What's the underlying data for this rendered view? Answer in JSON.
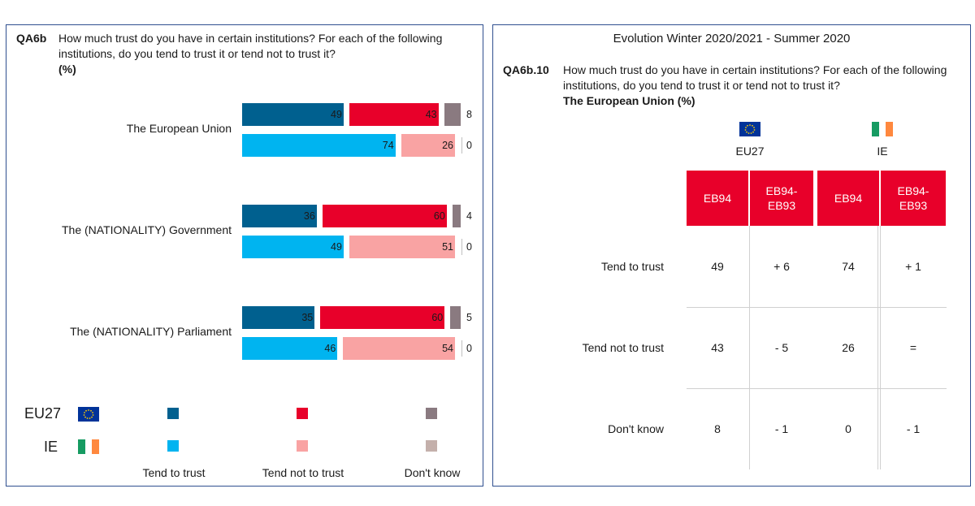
{
  "left": {
    "qcode": "QA6b",
    "question": "How much trust do you have in certain institutions? For each of the following institutions, do you tend to trust it or tend not to trust it?",
    "unit": "(%)",
    "legend": {
      "eu_code": "EU27",
      "ie_code": "IE",
      "trust": "Tend to trust",
      "not_trust": "Tend not to trust",
      "dont_know": "Don't know"
    }
  },
  "right": {
    "title": "Evolution Winter 2020/2021 - Summer 2020",
    "qcode": "QA6b.10",
    "question": "How much trust do you have in certain institutions? For each of the following institutions, do you tend to trust it or tend not to trust it?",
    "subject": "The European Union",
    "unit": "(%)",
    "groups": [
      "EU27",
      "IE"
    ],
    "col_heads": [
      "EB94",
      "EB94-\nEB93",
      "EB94",
      "EB94-\nEB93"
    ],
    "rows": [
      {
        "label": "Tend to trust",
        "cells": [
          "49",
          "+ 6",
          "74",
          "+ 1"
        ]
      },
      {
        "label": "Tend not to trust",
        "cells": [
          "43",
          "- 5",
          "26",
          "="
        ]
      },
      {
        "label": "Don't know",
        "cells": [
          "8",
          "- 1",
          "0",
          "- 1"
        ]
      }
    ]
  },
  "colors": {
    "eu_trust": "#00608f",
    "eu_not": "#e8002a",
    "eu_dk": "#8a7a80",
    "ie_trust": "#00b4f0",
    "ie_not": "#f9a3a3",
    "ie_dk": "#c4b0ab",
    "header_red": "#e8002a"
  },
  "chart_data": {
    "type": "bar",
    "orientation": "horizontal",
    "stacked": true,
    "categories": [
      "The European Union",
      "The (NATIONALITY) Government",
      "The (NATIONALITY) Parliament"
    ],
    "series_groups": [
      {
        "name": "EU27",
        "trust": [
          49,
          36,
          35
        ],
        "not_trust": [
          43,
          60,
          60
        ],
        "dont_know": [
          8,
          4,
          5
        ]
      },
      {
        "name": "IE",
        "trust": [
          74,
          49,
          46
        ],
        "not_trust": [
          26,
          51,
          54
        ],
        "dont_know": [
          0,
          0,
          0
        ]
      }
    ],
    "xlim": [
      0,
      100
    ],
    "legend": "bottom"
  }
}
